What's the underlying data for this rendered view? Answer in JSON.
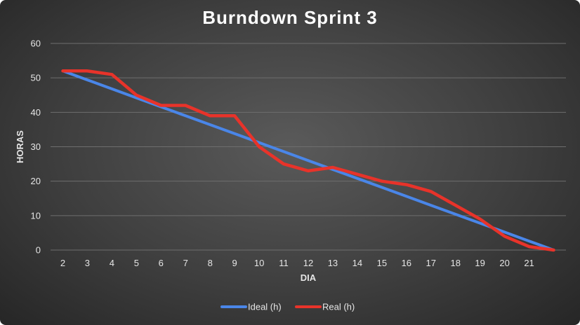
{
  "chart_data": {
    "type": "line",
    "title": "Burndown Sprint 3",
    "xlabel": "DIA",
    "ylabel": "HORAS",
    "x": [
      2,
      3,
      4,
      5,
      6,
      7,
      8,
      9,
      10,
      11,
      12,
      13,
      14,
      15,
      16,
      17,
      18,
      19,
      20,
      21,
      22
    ],
    "x_tick_labels": [
      "2",
      "3",
      "4",
      "5",
      "6",
      "7",
      "8",
      "9",
      "10",
      "11",
      "12",
      "13",
      "14",
      "15",
      "16",
      "17",
      "18",
      "19",
      "20",
      "21"
    ],
    "y_ticks": [
      0,
      10,
      20,
      30,
      40,
      50,
      60
    ],
    "ylim": [
      0,
      60
    ],
    "grid": true,
    "legend_position": "bottom",
    "series": [
      {
        "name": "Ideal (h)",
        "color": "#4a86e8",
        "values": [
          52,
          49.4,
          46.8,
          44.2,
          41.6,
          39,
          36.4,
          33.8,
          31.2,
          28.6,
          26,
          23.4,
          20.8,
          18.2,
          15.6,
          13,
          10.4,
          7.8,
          5.2,
          2.6,
          0
        ]
      },
      {
        "name": "Real (h)",
        "color": "#e8332a",
        "values": [
          52,
          52,
          51,
          45,
          42,
          42,
          39,
          39,
          30,
          25,
          23,
          24,
          22,
          20,
          19,
          17,
          13,
          9,
          4,
          1,
          0
        ]
      }
    ]
  }
}
